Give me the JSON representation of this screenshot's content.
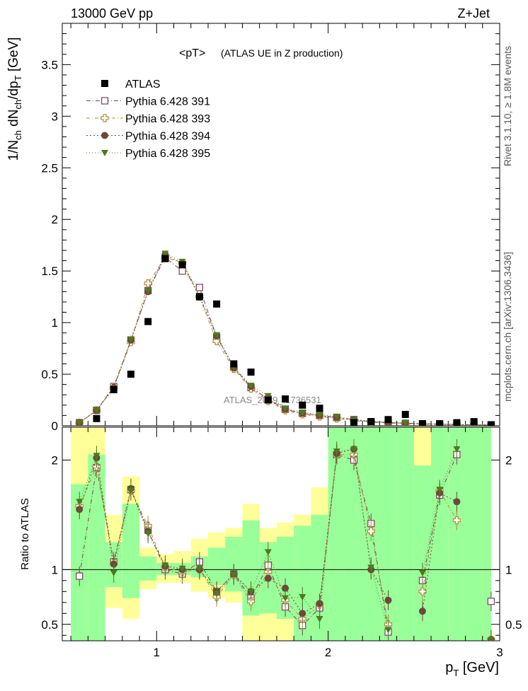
{
  "header": {
    "left": "13000 GeV pp",
    "right": "Z+Jet",
    "title_main": "<pT>",
    "title_sub": "(ATLAS UE in Z production)",
    "watermark": "ATLAS_2019_I1736531",
    "side_rivet": "Rivet 3.1.10, ≥ 1.8M events",
    "side_mcplots": "mcplots.cern.ch [arXiv:1306.3436]"
  },
  "axes": {
    "ylabel_main": "1/N_ch dN_ch/dp_T [GeV]",
    "ylabel_ratio": "Ratio to ATLAS",
    "xlabel": "p_T [GeV]"
  },
  "colors": {
    "band_inner": "#99ff99",
    "band_outer": "#ffff99",
    "s391": "#7a3f5c",
    "s393": "#b58a3a",
    "s394": "#6b4a3a",
    "s395": "#4f7a1f"
  },
  "chart_data": [
    {
      "type": "scatter",
      "panel": "main",
      "title": "<pT> (ATLAS UE in Z production)",
      "xlabel": "p_T [GeV]",
      "ylabel": "1/N_ch dN_ch/dp_T [GeV]",
      "xlim": [
        0.45,
        3.0
      ],
      "ylim": [
        0,
        3.9
      ],
      "yticks": [
        "0",
        "0.5",
        "1",
        "1.5",
        "2",
        "2.5",
        "3",
        "3.5"
      ],
      "xticks": [
        "1",
        "2",
        "3"
      ],
      "x": [
        0.55,
        0.65,
        0.75,
        0.85,
        0.95,
        1.05,
        1.15,
        1.25,
        1.35,
        1.45,
        1.55,
        1.65,
        1.75,
        1.85,
        1.95,
        2.05,
        2.15,
        2.25,
        2.35,
        2.45,
        2.55,
        2.65,
        2.75,
        2.85,
        2.95
      ],
      "series": [
        {
          "name": "ATLAS",
          "values": [
            0.0,
            0.07,
            0.35,
            0.5,
            1.01,
            1.62,
            1.56,
            1.25,
            1.18,
            0.6,
            0.52,
            0.25,
            0.26,
            0.2,
            0.17,
            0.0,
            0.03,
            0.04,
            0.06,
            0.11,
            0.02,
            0.02,
            0.03,
            0.04,
            0.01
          ]
        },
        {
          "name": "Pythia 6.428 391",
          "values": [
            0.03,
            0.15,
            0.38,
            0.83,
            1.31,
            1.63,
            1.5,
            1.34,
            0.86,
            0.57,
            0.37,
            0.26,
            0.16,
            0.12,
            0.1,
            0.08,
            0.06,
            0.04,
            0.03,
            0.025,
            0.02,
            0.015,
            0.012,
            0.01,
            0.008
          ]
        },
        {
          "name": "Pythia 6.428 393",
          "values": [
            0.03,
            0.15,
            0.37,
            0.81,
            1.38,
            1.63,
            1.58,
            1.25,
            0.82,
            0.55,
            0.36,
            0.24,
            0.15,
            0.11,
            0.09,
            0.07,
            0.05,
            0.035,
            0.025,
            0.02,
            0.015,
            0.012,
            0.01,
            0.008,
            0.006
          ]
        },
        {
          "name": "Pythia 6.428 394",
          "values": [
            0.03,
            0.15,
            0.37,
            0.83,
            1.3,
            1.66,
            1.57,
            1.25,
            0.87,
            0.56,
            0.38,
            0.25,
            0.16,
            0.12,
            0.1,
            0.08,
            0.06,
            0.04,
            0.03,
            0.025,
            0.02,
            0.015,
            0.012,
            0.01,
            0.008
          ]
        },
        {
          "name": "Pythia 6.428 395",
          "values": [
            0.03,
            0.15,
            0.36,
            0.84,
            1.31,
            1.67,
            1.59,
            1.26,
            0.88,
            0.57,
            0.39,
            0.29,
            0.17,
            0.13,
            0.11,
            0.09,
            0.06,
            0.045,
            0.035,
            0.028,
            0.022,
            0.017,
            0.013,
            0.01,
            0.008
          ]
        }
      ],
      "legend": "top-left"
    },
    {
      "type": "scatter",
      "panel": "ratio",
      "ylabel": "Ratio to ATLAS",
      "xlabel": "p_T [GeV]",
      "xlim": [
        0.45,
        3.0
      ],
      "ylim": [
        0.35,
        2.3
      ],
      "yticks": [
        "0.5",
        "1",
        "2"
      ],
      "xticks": [
        "1",
        "2",
        "3"
      ],
      "band_x": [
        [
          0.5,
          0.6
        ],
        [
          0.6,
          0.7
        ],
        [
          0.7,
          0.8
        ],
        [
          0.8,
          0.9
        ],
        [
          0.9,
          1.0
        ],
        [
          1.0,
          1.1
        ],
        [
          1.1,
          1.2
        ],
        [
          1.2,
          1.3
        ],
        [
          1.3,
          1.4
        ],
        [
          1.4,
          1.5
        ],
        [
          1.5,
          1.6
        ],
        [
          1.6,
          1.7
        ],
        [
          1.7,
          1.8
        ],
        [
          1.8,
          1.9
        ],
        [
          1.9,
          2.0
        ],
        [
          2.0,
          2.1
        ],
        [
          2.1,
          2.2
        ],
        [
          2.2,
          2.3
        ],
        [
          2.3,
          2.4
        ],
        [
          2.4,
          2.5
        ],
        [
          2.5,
          2.6
        ],
        [
          2.6,
          2.7
        ],
        [
          2.7,
          2.8
        ],
        [
          2.8,
          2.9
        ],
        [
          2.9,
          2.95
        ]
      ],
      "band_inner": [
        [
          0.35,
          1.78
        ],
        [
          0.35,
          2.05
        ],
        [
          0.84,
          1.25
        ],
        [
          0.74,
          1.6
        ],
        [
          0.9,
          1.12
        ],
        [
          0.95,
          1.06
        ],
        [
          0.95,
          1.06
        ],
        [
          0.93,
          1.12
        ],
        [
          0.86,
          1.2
        ],
        [
          0.8,
          1.3
        ],
        [
          0.58,
          1.45
        ],
        [
          0.6,
          1.25
        ],
        [
          0.55,
          1.3
        ],
        [
          0.35,
          1.4
        ],
        [
          0.35,
          1.5
        ],
        [
          0.35,
          2.3
        ],
        [
          0.35,
          2.3
        ],
        [
          0.35,
          2.3
        ],
        [
          0.35,
          2.3
        ],
        [
          0.35,
          2.3
        ],
        [
          0.35,
          1.95
        ],
        [
          0.35,
          2.3
        ],
        [
          0.35,
          2.3
        ],
        [
          0.35,
          2.3
        ],
        [
          0.35,
          2.3
        ]
      ],
      "band_outer": [
        [
          0.35,
          2.3
        ],
        [
          0.35,
          2.3
        ],
        [
          0.65,
          1.5
        ],
        [
          0.55,
          1.85
        ],
        [
          0.82,
          1.2
        ],
        [
          0.88,
          1.14
        ],
        [
          0.88,
          1.17
        ],
        [
          0.8,
          1.28
        ],
        [
          0.74,
          1.34
        ],
        [
          0.7,
          1.38
        ],
        [
          0.35,
          1.6
        ],
        [
          0.35,
          1.38
        ],
        [
          0.35,
          1.43
        ],
        [
          0.35,
          1.5
        ],
        [
          0.35,
          1.75
        ],
        [
          0.35,
          2.3
        ],
        [
          0.35,
          2.3
        ],
        [
          0.35,
          2.3
        ],
        [
          0.35,
          2.3
        ],
        [
          0.35,
          2.3
        ],
        [
          0.35,
          2.3
        ],
        [
          0.35,
          2.3
        ],
        [
          0.35,
          2.3
        ],
        [
          0.35,
          2.3
        ],
        [
          0.35,
          2.3
        ]
      ],
      "series": [
        {
          "name": "Pythia 6.428 391",
          "values": [
            0.94,
            1.93,
            1.07,
            1.73,
            1.36,
            1.0,
            0.96,
            1.07,
            0.8,
            0.96,
            0.74,
            1.04,
            0.66,
            0.49,
            0.65,
            2.05,
            2.0,
            1.42,
            0.43,
            null,
            0.9,
            1.68,
            2.05,
            null,
            0.71
          ]
        },
        {
          "name": "Pythia 6.428 393",
          "values": [
            1.58,
            1.94,
            1.06,
            1.72,
            1.4,
            1.02,
            0.98,
            1.0,
            0.75,
            0.95,
            0.71,
            0.98,
            0.72,
            0.55,
            0.68,
            2.05,
            2.05,
            1.35,
            0.5,
            null,
            0.8,
            1.72,
            1.45,
            null,
            0.36
          ]
        },
        {
          "name": "Pythia 6.428 394",
          "values": [
            1.55,
            2.02,
            1.05,
            1.74,
            1.35,
            1.03,
            1.0,
            1.0,
            0.8,
            0.96,
            0.8,
            0.92,
            0.83,
            0.6,
            0.69,
            2.06,
            2.1,
            1.0,
            0.72,
            null,
            0.62,
            1.7,
            1.62,
            null,
            0.36
          ]
        },
        {
          "name": "Pythia 6.428 395",
          "values": [
            1.62,
            2.04,
            0.97,
            1.72,
            1.33,
            1.04,
            1.01,
            1.01,
            0.78,
            0.95,
            0.8,
            1.16,
            0.74,
            0.75,
            0.55,
            2.08,
            2.1,
            1.02,
            0.45,
            null,
            0.97,
            1.73,
            2.1,
            null,
            0.36
          ]
        }
      ]
    }
  ]
}
